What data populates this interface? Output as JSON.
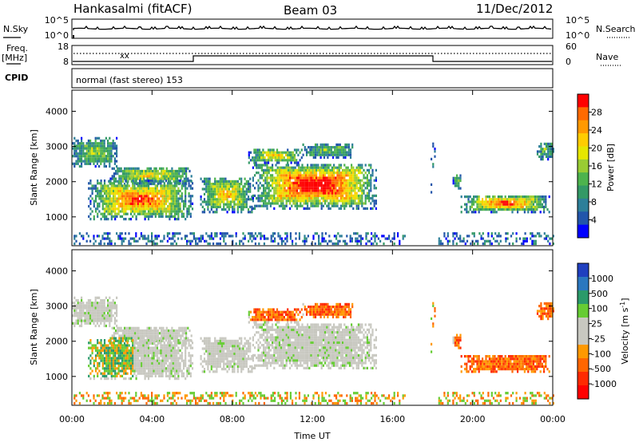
{
  "header": {
    "station": "Hankasalmi (fitACF)",
    "beam": "Beam 03",
    "date": "11/Dec/2012"
  },
  "strip_panels": {
    "nsky": {
      "left_label": "N.Sky",
      "right_label": "N.Search",
      "left_ticks": [
        "10^5",
        "10^0"
      ],
      "right_ticks": [
        "10^5",
        "10^0"
      ]
    },
    "freq": {
      "left_label_top": "Freq.",
      "left_label_bottom": "[MHz]",
      "right_label": "Nave",
      "left_ticks": [
        "18",
        "8"
      ],
      "right_ticks": [
        "60",
        "0"
      ]
    },
    "cpid": {
      "label": "CPID",
      "value": "normal (fast stereo) 153"
    }
  },
  "chart_data": [
    {
      "type": "heatmap",
      "name": "power",
      "ylabel": "Slant Range [km]",
      "xlabel": "",
      "ylim": [
        180,
        4600
      ],
      "xlim": [
        0,
        24
      ],
      "yticks": [
        "4000",
        "3000",
        "2000",
        "1000"
      ],
      "colorbar": {
        "label": "Power [dB]",
        "ticks": [
          "28",
          "24",
          "20",
          "16",
          "12",
          "8",
          "4"
        ],
        "colors": [
          "#ff0000",
          "#ff6a00",
          "#ff9900",
          "#ffcc00",
          "#e6e600",
          "#99cc33",
          "#4db34d",
          "#339966",
          "#2d7f99",
          "#2255aa",
          "#0000ff"
        ]
      }
    },
    {
      "type": "heatmap",
      "name": "velocity",
      "ylabel": "Slant Range [km]",
      "xlabel": "Time UT",
      "ylim": [
        180,
        4600
      ],
      "xlim": [
        0,
        24
      ],
      "yticks": [
        "4000",
        "3000",
        "2000",
        "1000"
      ],
      "xticks": [
        "00:00",
        "04:00",
        "08:00",
        "12:00",
        "16:00",
        "20:00",
        "00:00"
      ],
      "colorbar": {
        "label": "Velocity [m s",
        "label_sup": "-1",
        "label_close": "]",
        "ticks": [
          "1000",
          "500",
          "100",
          "25",
          "-25",
          "-100",
          "-500",
          "-1000"
        ],
        "colors": [
          "#1f3fbf",
          "#2a77bf",
          "#2a9a6a",
          "#66cc33",
          "#c8c8c0",
          "#c8c8c0",
          "#ff9900",
          "#ff6600",
          "#ff2a00",
          "#ff0000"
        ]
      }
    }
  ]
}
